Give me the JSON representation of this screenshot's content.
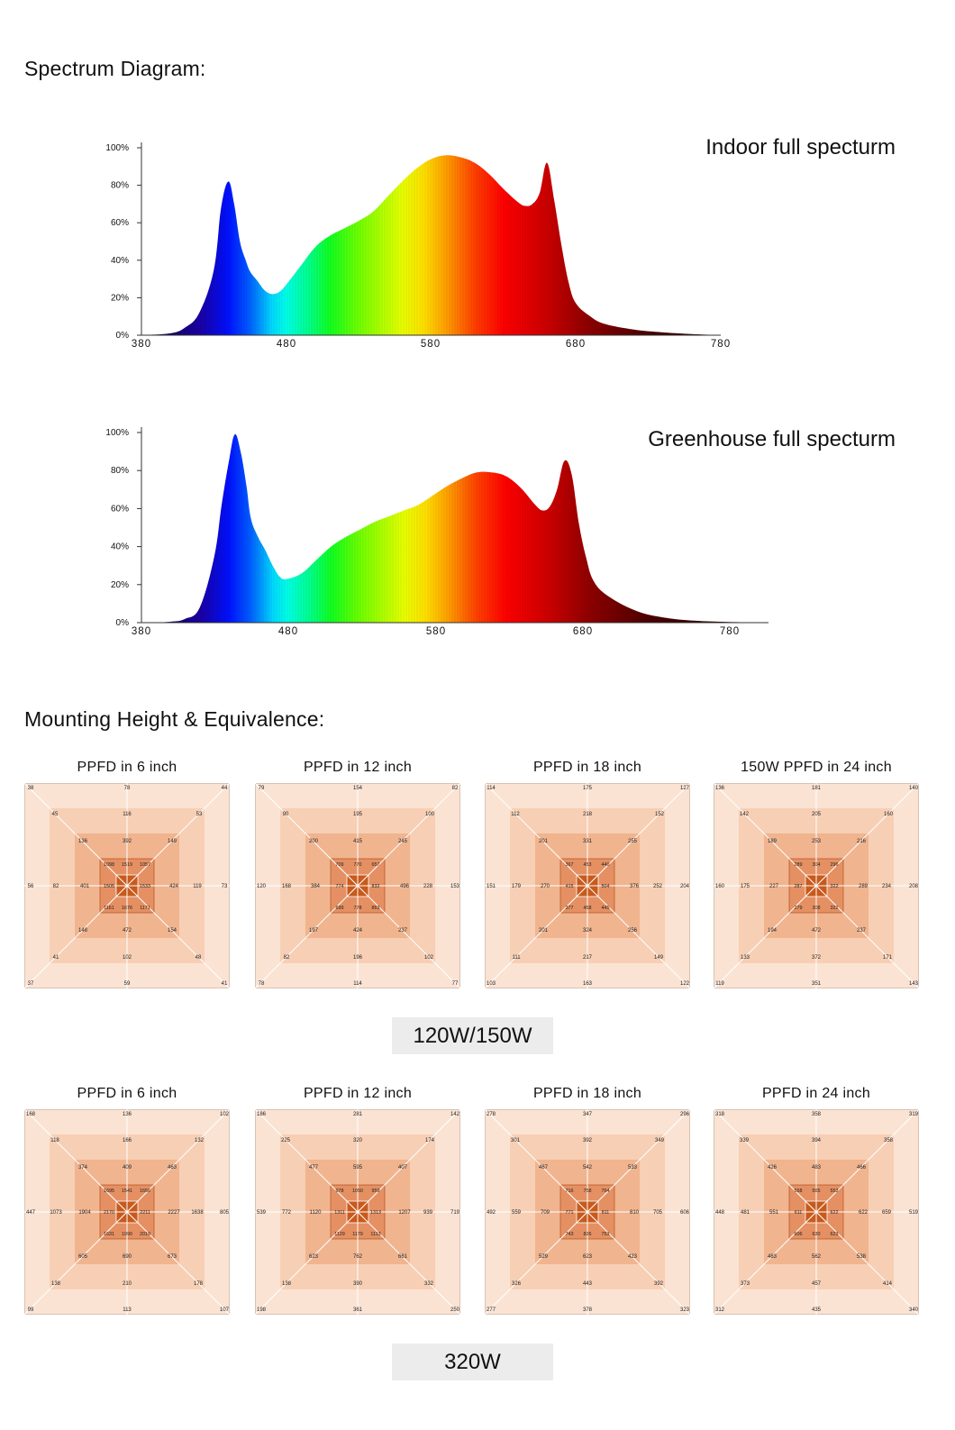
{
  "section_spectrum": {
    "title": "Spectrum Diagram:"
  },
  "section_mounting": {
    "title": "Mounting Height & Equivalence:"
  },
  "colors": {
    "zone1": "#fbe3d3",
    "zone2": "#f7cfb4",
    "zone3": "#f0b48f",
    "zone4": "#e59062",
    "zone5": "#c85a1c",
    "line": "#ffffff"
  },
  "chart_data": [
    {
      "type": "area",
      "title": "Indoor full specturm",
      "xlabel": "",
      "ylabel": "",
      "xticks": [
        "380",
        "480",
        "580",
        "680",
        "780"
      ],
      "yticks": [
        "0%",
        "20%",
        "40%",
        "60%",
        "80%",
        "100%"
      ],
      "xlim": [
        380,
        780
      ],
      "ylim": [
        0,
        100
      ],
      "x": [
        380,
        400,
        410,
        420,
        430,
        435,
        440,
        444,
        448,
        452,
        455,
        460,
        465,
        470,
        475,
        480,
        490,
        500,
        510,
        520,
        530,
        540,
        550,
        560,
        570,
        580,
        590,
        600,
        610,
        620,
        630,
        640,
        645,
        650,
        655,
        660,
        665,
        670,
        675,
        680,
        690,
        700,
        720,
        740,
        760,
        780
      ],
      "y": [
        0,
        1,
        4,
        12,
        35,
        68,
        82,
        70,
        50,
        40,
        34,
        29,
        24,
        22,
        23,
        27,
        37,
        47,
        53,
        57,
        61,
        66,
        74,
        82,
        89,
        94,
        96,
        95,
        92,
        86,
        78,
        71,
        69,
        70,
        76,
        92,
        72,
        48,
        28,
        17,
        10,
        6,
        3,
        1.5,
        0.6,
        0
      ]
    },
    {
      "type": "area",
      "title": "Greenhouse full specturm",
      "xlabel": "",
      "ylabel": "",
      "xticks": [
        "380",
        "480",
        "580",
        "680",
        "780"
      ],
      "yticks": [
        "0%",
        "20%",
        "40%",
        "60%",
        "80%",
        "100%"
      ],
      "xlim": [
        380,
        810
      ],
      "ylim": [
        0,
        100
      ],
      "x": [
        380,
        400,
        410,
        420,
        430,
        435,
        440,
        444,
        448,
        452,
        455,
        460,
        465,
        470,
        475,
        480,
        490,
        500,
        510,
        520,
        530,
        540,
        550,
        560,
        570,
        580,
        590,
        600,
        610,
        620,
        630,
        640,
        650,
        655,
        660,
        665,
        670,
        675,
        680,
        685,
        690,
        700,
        720,
        740,
        760,
        780,
        800,
        810
      ],
      "y": [
        0,
        0.5,
        2,
        8,
        35,
        62,
        85,
        99,
        90,
        72,
        55,
        45,
        38,
        30,
        24,
        23,
        26,
        33,
        40,
        45,
        49,
        53,
        56,
        59,
        62,
        67,
        72,
        76,
        79,
        79,
        77,
        71,
        62,
        59,
        61,
        70,
        85,
        78,
        52,
        34,
        22,
        14,
        6,
        2.5,
        1,
        0.4,
        0.1,
        0
      ]
    }
  ],
  "ppfd_groups": [
    {
      "wattage_label": "120W/150W",
      "maps": [
        {
          "title": "PPFD in 6 inch",
          "r0": [
            38,
            78,
            44,
            56,
            73,
            37,
            59,
            41
          ],
          "r1": [
            45,
            116,
            53,
            82,
            119,
            41,
            102,
            48
          ],
          "r2": [
            136,
            392,
            149,
            401,
            424,
            148,
            472,
            154
          ],
          "r3": [
            1098,
            1519,
            1057,
            1505,
            1533,
            1161,
            1676,
            1171
          ]
        },
        {
          "title": "PPFD in 12 inch",
          "r0": [
            79,
            154,
            82,
            120,
            153,
            78,
            114,
            77
          ],
          "r1": [
            90,
            195,
            100,
            168,
            228,
            82,
            196,
            102
          ],
          "r2": [
            200,
            415,
            245,
            384,
            496,
            197,
            424,
            237
          ],
          "r3": [
            709,
            770,
            657,
            774,
            832,
            699,
            778,
            863
          ]
        },
        {
          "title": "PPFD in 18 inch",
          "r0": [
            114,
            175,
            127,
            151,
            204,
            103,
            163,
            122
          ],
          "r1": [
            112,
            218,
            152,
            179,
            252,
            111,
            217,
            149
          ],
          "r2": [
            201,
            331,
            255,
            270,
            376,
            201,
            324,
            256
          ],
          "r3": [
            367,
            453,
            440,
            415,
            504,
            377,
            458,
            445
          ]
        },
        {
          "title": "150W PPFD in 24 inch",
          "r0": [
            136,
            181,
            140,
            160,
            208,
            119,
            351,
            143
          ],
          "r1": [
            142,
            205,
            160,
            175,
            234,
            133,
            372,
            171
          ],
          "r2": [
            189,
            253,
            216,
            227,
            289,
            194,
            472,
            237
          ],
          "r3": [
            289,
            304,
            296,
            287,
            322,
            279,
            308,
            322
          ]
        }
      ]
    },
    {
      "wattage_label": "320W",
      "maps": [
        {
          "title": "PPFD in 6  inch",
          "r0": [
            168,
            136,
            102,
            447,
            805,
            99,
            113,
            107
          ],
          "r1": [
            118,
            166,
            132,
            1073,
            1638,
            138,
            210,
            178
          ],
          "r2": [
            374,
            409,
            463,
            1904,
            2227,
            605,
            690,
            673
          ],
          "r3": [
            1695,
            1541,
            1656,
            2170,
            2211,
            1631,
            1990,
            2019
          ]
        },
        {
          "title": "PPFD in 12 inch",
          "r0": [
            186,
            281,
            142,
            539,
            719,
            198,
            361,
            250
          ],
          "r1": [
            225,
            320,
            174,
            772,
            939,
            138,
            390,
            332
          ],
          "r2": [
            477,
            595,
            407,
            1120,
            1207,
            623,
            762,
            661
          ],
          "r3": [
            978,
            1050,
            959,
            1311,
            1313,
            1129,
            1179,
            1113
          ]
        },
        {
          "title": "PPFD in 18 inch",
          "r0": [
            278,
            347,
            296,
            492,
            606,
            277,
            378,
            323
          ],
          "r1": [
            301,
            392,
            349,
            559,
            705,
            326,
            443,
            392
          ],
          "r2": [
            467,
            542,
            533,
            709,
            810,
            529,
            623,
            423
          ],
          "r3": [
            716,
            758,
            764,
            771,
            811,
            743,
            826,
            753
          ]
        },
        {
          "title": "PPFD in 24 inch",
          "r0": [
            318,
            358,
            319,
            448,
            519,
            312,
            435,
            340
          ],
          "r1": [
            339,
            394,
            358,
            481,
            659,
            373,
            457,
            414
          ],
          "r2": [
            426,
            483,
            466,
            551,
            622,
            483,
            562,
            538
          ],
          "r3": [
            558,
            565,
            553,
            611,
            622,
            606,
            630,
            623
          ]
        }
      ]
    }
  ]
}
